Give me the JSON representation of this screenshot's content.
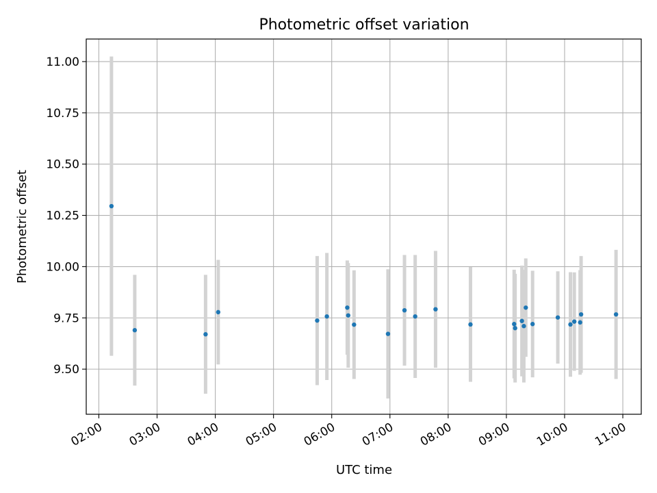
{
  "chart_data": {
    "type": "scatter",
    "title": "Photometric offset variation",
    "xlabel": "UTC time",
    "ylabel": "Photometric offset",
    "x_tick_labels": [
      "02:00",
      "03:00",
      "04:00",
      "05:00",
      "06:00",
      "07:00",
      "08:00",
      "09:00",
      "10:00",
      "11:00"
    ],
    "y_tick_labels": [
      "9.50",
      "9.75",
      "10.00",
      "10.25",
      "10.50",
      "10.75",
      "11.00"
    ],
    "y_ticks": [
      9.5,
      9.75,
      10.0,
      10.25,
      10.5,
      10.75,
      11.0
    ],
    "xlim": [
      "01:47",
      "11:19"
    ],
    "ylim": [
      9.28,
      11.11
    ],
    "grid": true,
    "marker_color": "#1f77b4",
    "errorbar_color": "#d3d3d3",
    "points": [
      {
        "time": "02:13",
        "y": 10.295,
        "err": 0.73
      },
      {
        "time": "02:37",
        "y": 9.69,
        "err": 0.27
      },
      {
        "time": "03:50",
        "y": 9.67,
        "err": 0.29
      },
      {
        "time": "04:03",
        "y": 9.778,
        "err": 0.255
      },
      {
        "time": "05:45",
        "y": 9.737,
        "err": 0.315
      },
      {
        "time": "05:55",
        "y": 9.757,
        "err": 0.31
      },
      {
        "time": "06:16",
        "y": 9.8,
        "err": 0.23
      },
      {
        "time": "06:17",
        "y": 9.762,
        "err": 0.255
      },
      {
        "time": "06:23",
        "y": 9.717,
        "err": 0.265
      },
      {
        "time": "06:58",
        "y": 9.672,
        "err": 0.315
      },
      {
        "time": "07:15",
        "y": 9.787,
        "err": 0.27
      },
      {
        "time": "07:26",
        "y": 9.757,
        "err": 0.3
      },
      {
        "time": "07:47",
        "y": 9.792,
        "err": 0.285
      },
      {
        "time": "08:23",
        "y": 9.718,
        "err": 0.28
      },
      {
        "time": "09:08",
        "y": 9.72,
        "err": 0.265
      },
      {
        "time": "09:09",
        "y": 9.7,
        "err": 0.265
      },
      {
        "time": "09:16",
        "y": 9.735,
        "err": 0.27
      },
      {
        "time": "09:18",
        "y": 9.71,
        "err": 0.275
      },
      {
        "time": "09:20",
        "y": 9.8,
        "err": 0.24
      },
      {
        "time": "09:27",
        "y": 9.72,
        "err": 0.26
      },
      {
        "time": "09:53",
        "y": 9.752,
        "err": 0.225
      },
      {
        "time": "10:06",
        "y": 9.718,
        "err": 0.255
      },
      {
        "time": "10:10",
        "y": 9.732,
        "err": 0.24
      },
      {
        "time": "10:16",
        "y": 9.728,
        "err": 0.255
      },
      {
        "time": "10:17",
        "y": 9.767,
        "err": 0.285
      },
      {
        "time": "10:53",
        "y": 9.767,
        "err": 0.315
      }
    ]
  }
}
